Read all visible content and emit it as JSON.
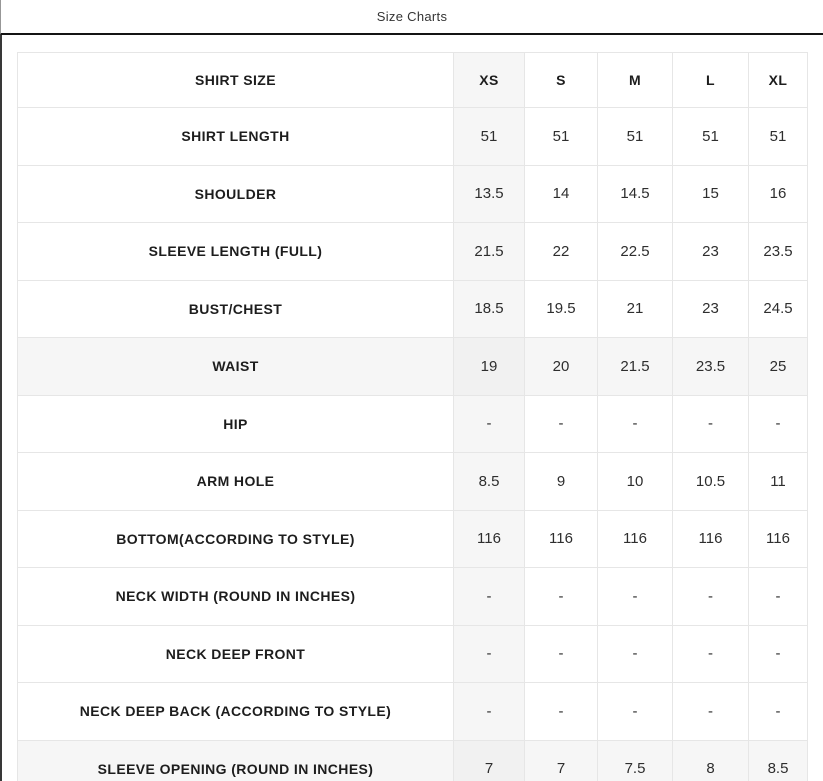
{
  "header": {
    "title": "Size Charts"
  },
  "colors": {
    "title_rule": "#141414",
    "left_edge": "#383838",
    "cell_border": "#e6e6e6",
    "shaded_bg": "#f6f6f6",
    "label_text": "#1d1d1d",
    "value_text": "#2e2e2e"
  },
  "table": {
    "header_row": {
      "label": "SHIRT SIZE",
      "sizes": [
        "XS",
        "S",
        "M",
        "L",
        "XL"
      ]
    },
    "rows": [
      {
        "label": "SHIRT LENGTH",
        "values": [
          "51",
          "51",
          "51",
          "51",
          "51"
        ],
        "shaded": false
      },
      {
        "label": "SHOULDER",
        "values": [
          "13.5",
          "14",
          "14.5",
          "15",
          "16"
        ],
        "shaded": false
      },
      {
        "label": "SLEEVE LENGTH (FULL)",
        "values": [
          "21.5",
          "22",
          "22.5",
          "23",
          "23.5"
        ],
        "shaded": false
      },
      {
        "label": "BUST/CHEST",
        "values": [
          "18.5",
          "19.5",
          "21",
          "23",
          "24.5"
        ],
        "shaded": false
      },
      {
        "label": "WAIST",
        "values": [
          "19",
          "20",
          "21.5",
          "23.5",
          "25"
        ],
        "shaded": true
      },
      {
        "label": "HIP",
        "values": [
          "-",
          "-",
          "-",
          "-",
          "-"
        ],
        "shaded": false
      },
      {
        "label": "ARM HOLE",
        "values": [
          "8.5",
          "9",
          "10",
          "10.5",
          "11"
        ],
        "shaded": false
      },
      {
        "label": "BOTTOM(ACCORDING TO STYLE)",
        "values": [
          "116",
          "116",
          "116",
          "116",
          "116"
        ],
        "shaded": false
      },
      {
        "label": "NECK WIDTH (ROUND IN INCHES)",
        "values": [
          "-",
          "-",
          "-",
          "-",
          "-"
        ],
        "shaded": false
      },
      {
        "label": "NECK DEEP FRONT",
        "values": [
          "-",
          "-",
          "-",
          "-",
          "-"
        ],
        "shaded": false
      },
      {
        "label": "NECK DEEP BACK (ACCORDING TO STYLE)",
        "values": [
          "-",
          "-",
          "-",
          "-",
          "-"
        ],
        "shaded": false
      },
      {
        "label": "SLEEVE OPENING (ROUND IN INCHES)",
        "values": [
          "7",
          "7",
          "7.5",
          "8",
          "8.5"
        ],
        "shaded": true
      }
    ]
  }
}
